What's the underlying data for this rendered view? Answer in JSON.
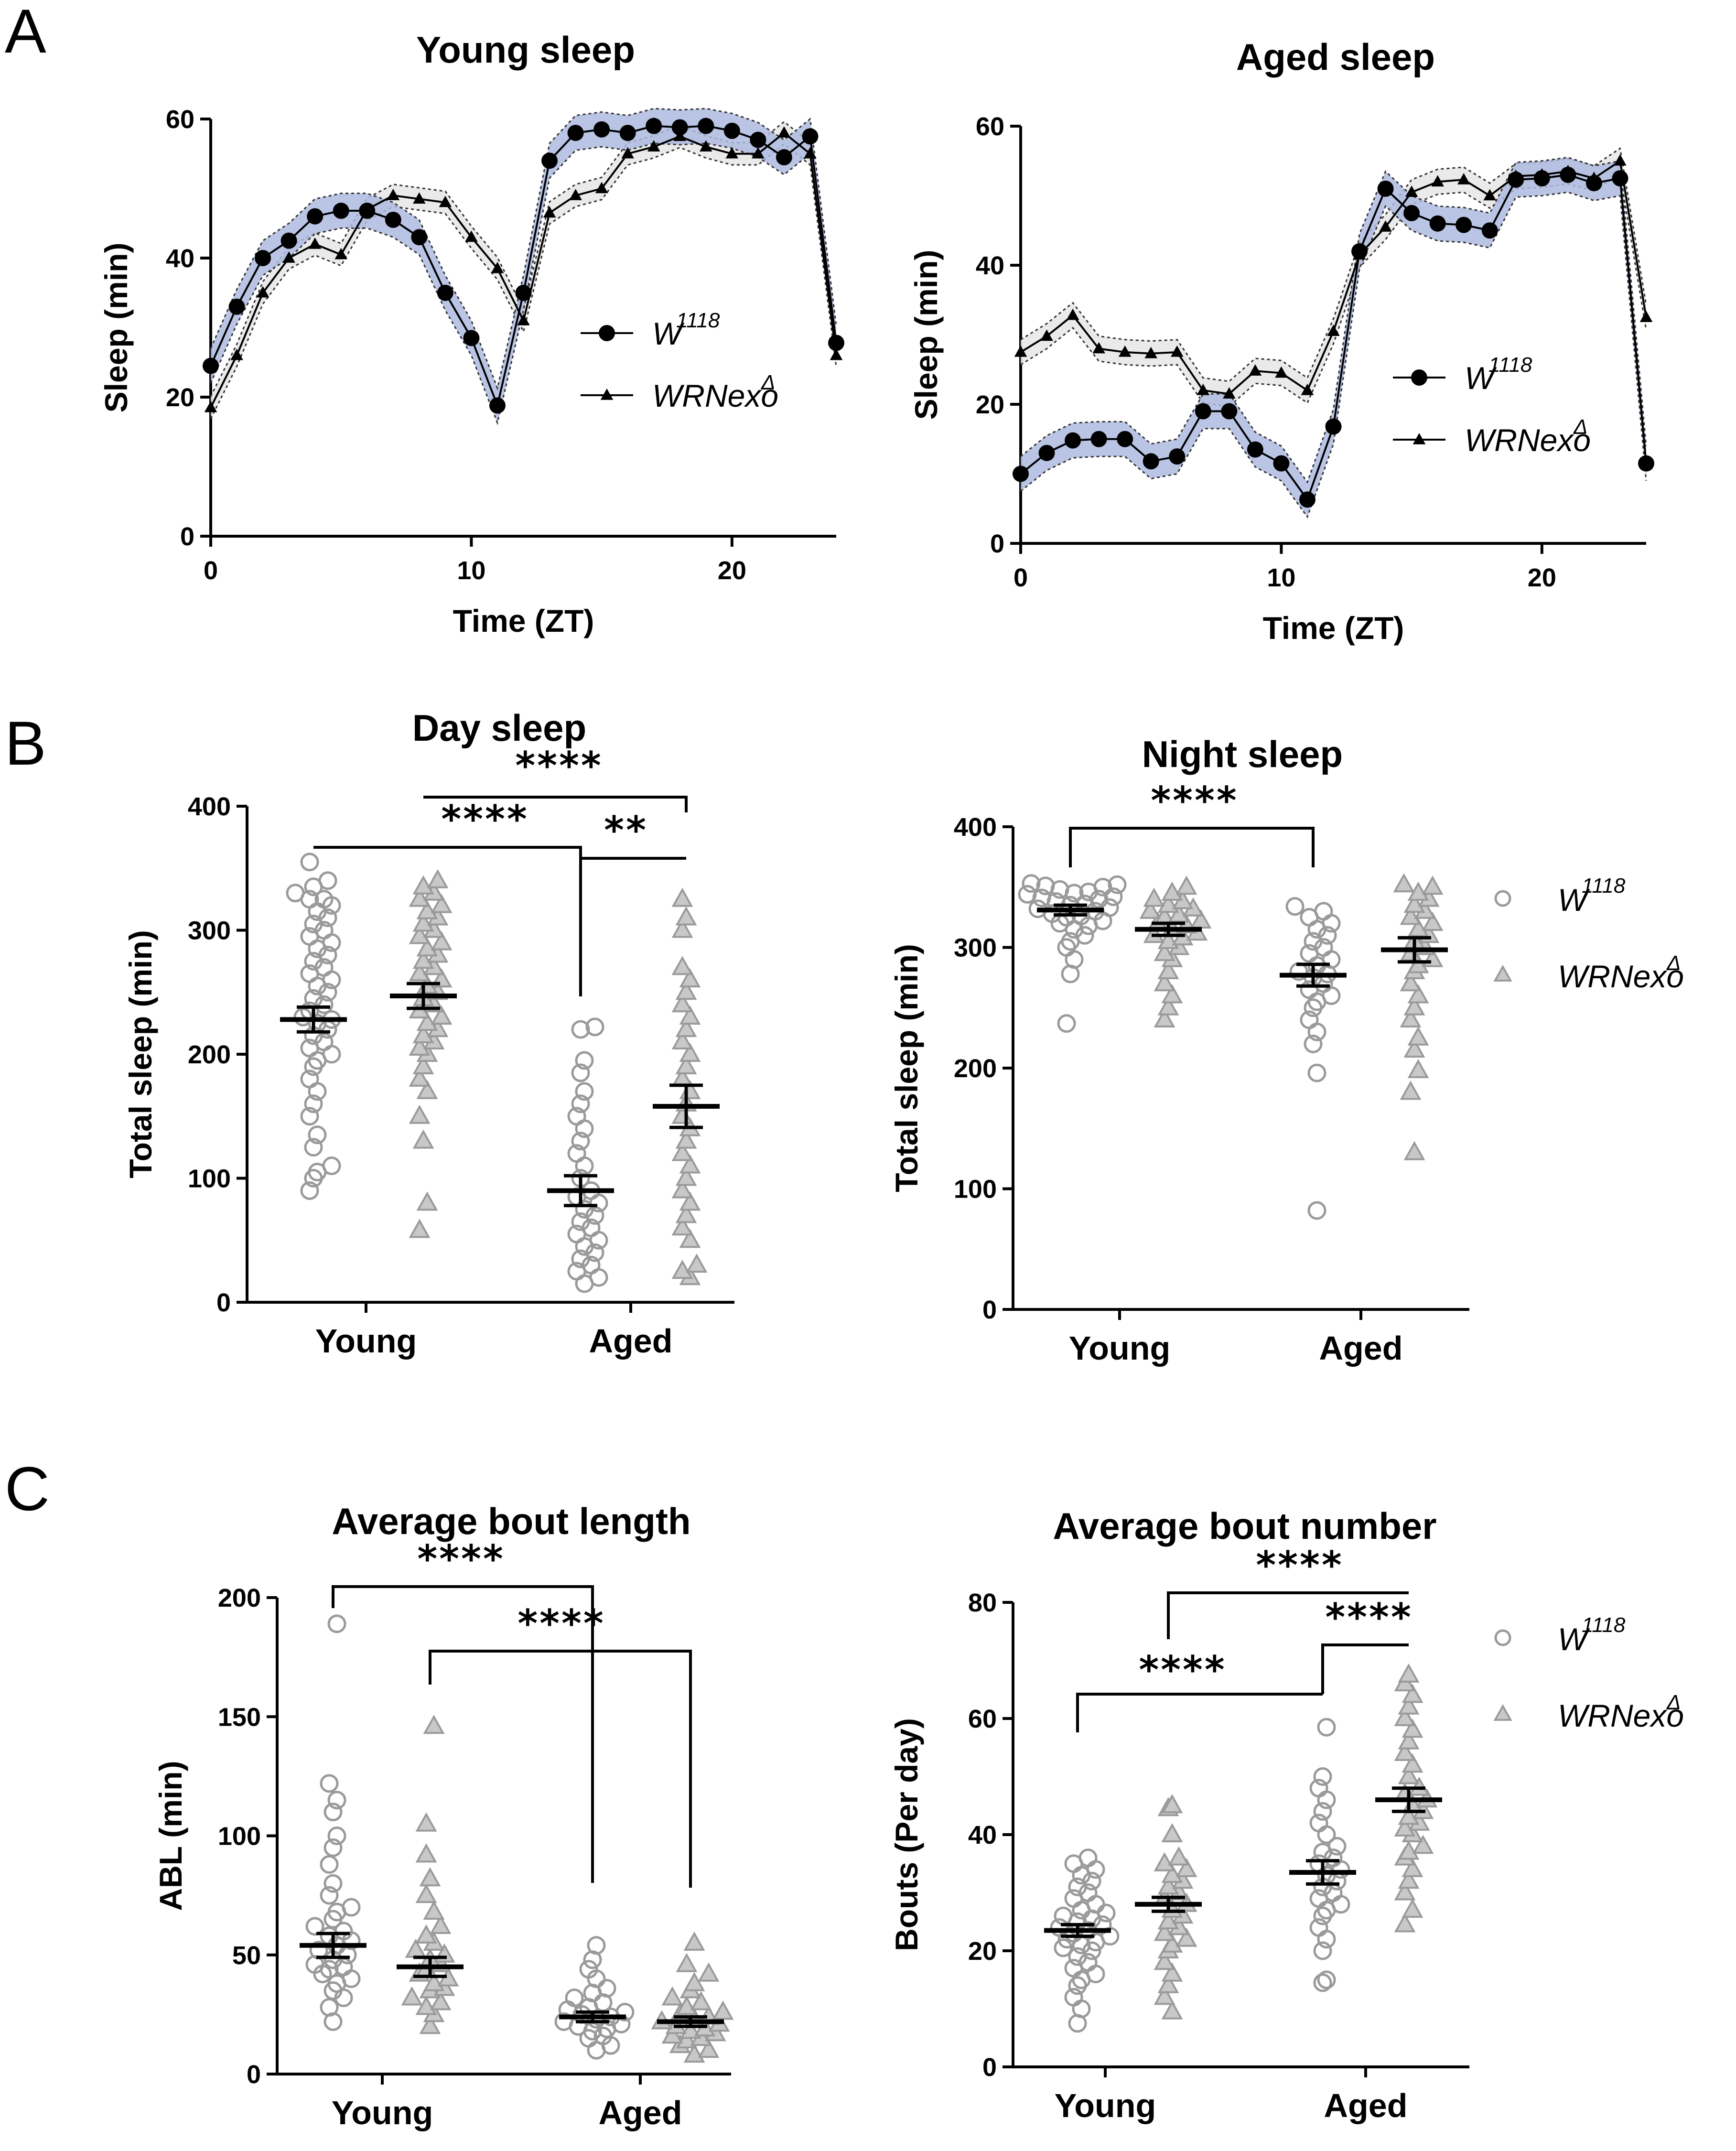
{
  "panels": [
    {
      "id": "A",
      "label": "A"
    },
    {
      "id": "B",
      "label": "B"
    },
    {
      "id": "C",
      "label": "C"
    }
  ],
  "legend": {
    "w1118": {
      "base": "W",
      "sup": "1118"
    },
    "wrn": {
      "base": "WRNexo",
      "sup": "Δ"
    }
  },
  "colors": {
    "band_w1118": "#aebbe0",
    "band_wrn": "#e6e6e6",
    "marker_gray": "#9a9a9a",
    "marker_fill_tri": "#c8c8c8"
  },
  "chart_data": [
    {
      "id": "young_sleep",
      "type": "line",
      "title": "Young sleep",
      "xlabel": "Time (ZT)",
      "ylabel": "Sleep (min)",
      "xlim": [
        0,
        24
      ],
      "ylim": [
        0,
        60
      ],
      "xticks": [
        0,
        10,
        20
      ],
      "yticks": [
        0,
        20,
        40,
        60
      ],
      "x": [
        0,
        1,
        2,
        3,
        4,
        5,
        6,
        7,
        8,
        9,
        10,
        11,
        12,
        13,
        14,
        15,
        16,
        17,
        18,
        19,
        20,
        21,
        22,
        23,
        24
      ],
      "series": [
        {
          "name": "W1118",
          "marker": "circle",
          "sem": 2.5,
          "values": [
            24.5,
            33,
            40,
            42.5,
            46,
            46.8,
            46.8,
            45.5,
            43,
            35,
            28.5,
            18.8,
            35,
            54,
            58,
            58.5,
            58,
            59,
            58.8,
            59,
            58.3,
            57,
            54.5,
            57.5,
            27.8
          ]
        },
        {
          "name": "WRNexoΔ",
          "marker": "triangle",
          "sem": 1.6,
          "values": [
            18.5,
            26,
            35,
            40,
            42,
            40.5,
            47,
            49,
            48.5,
            48,
            43,
            38.5,
            31,
            46.5,
            49,
            50,
            55,
            56,
            57.5,
            56,
            55,
            55,
            58,
            55,
            26
          ]
        }
      ]
    },
    {
      "id": "aged_sleep",
      "type": "line",
      "title": "Aged sleep",
      "xlabel": "Time (ZT)",
      "ylabel": "Sleep (min)",
      "xlim": [
        0,
        24
      ],
      "ylim": [
        0,
        60
      ],
      "xticks": [
        0,
        10,
        20
      ],
      "yticks": [
        0,
        20,
        40,
        60
      ],
      "x": [
        0,
        1,
        2,
        3,
        4,
        5,
        6,
        7,
        8,
        9,
        10,
        11,
        12,
        13,
        14,
        15,
        16,
        17,
        18,
        19,
        20,
        21,
        22,
        23,
        24
      ],
      "series": [
        {
          "name": "W1118",
          "marker": "circle",
          "sem": 2.5,
          "values": [
            10,
            13,
            14.8,
            15,
            15,
            11.8,
            12.5,
            19,
            19,
            13.5,
            11.5,
            6.3,
            16.8,
            42,
            51,
            47.5,
            46,
            45.8,
            45,
            52.3,
            52.5,
            53,
            51.8,
            52.5,
            11.5
          ]
        },
        {
          "name": "WRNexoΔ",
          "marker": "triangle",
          "sem": 1.8,
          "values": [
            27.5,
            29.8,
            32.8,
            28,
            27.5,
            27.3,
            27.5,
            22,
            21.5,
            24.8,
            24.5,
            22,
            30.5,
            41.5,
            45.5,
            50.5,
            52,
            52.3,
            50,
            52.8,
            53,
            53.5,
            52.5,
            55,
            32.5
          ]
        }
      ]
    },
    {
      "id": "day_sleep",
      "type": "scatter",
      "title": "Day sleep",
      "xlabel": "",
      "ylabel": "Total sleep (min)",
      "ylim": [
        0,
        400
      ],
      "yticks": [
        0,
        100,
        200,
        300,
        400
      ],
      "categories": [
        "Young",
        "Aged"
      ],
      "groups": [
        {
          "name": "W1118 Young",
          "marker": "circle",
          "mean": 228,
          "sem": 10,
          "values": [
            90,
            100,
            105,
            110,
            125,
            135,
            150,
            160,
            170,
            180,
            190,
            195,
            200,
            205,
            210,
            215,
            220,
            225,
            228,
            230,
            235,
            240,
            245,
            250,
            255,
            260,
            265,
            270,
            275,
            280,
            285,
            290,
            295,
            300,
            305,
            310,
            315,
            320,
            325,
            325,
            330,
            335,
            340,
            355
          ]
        },
        {
          "name": "WRNexoΔ Young",
          "marker": "triangle",
          "mean": 247,
          "sem": 10,
          "values": [
            58,
            80,
            130,
            150,
            170,
            180,
            190,
            200,
            205,
            210,
            215,
            220,
            225,
            230,
            235,
            240,
            245,
            250,
            255,
            260,
            265,
            270,
            275,
            280,
            285,
            290,
            295,
            300,
            305,
            310,
            315,
            320,
            325,
            330,
            335,
            340
          ]
        },
        {
          "name": "W1118 Aged",
          "marker": "circle",
          "mean": 90,
          "sem": 12,
          "values": [
            15,
            20,
            25,
            30,
            35,
            40,
            45,
            50,
            55,
            60,
            65,
            70,
            75,
            80,
            85,
            90,
            100,
            110,
            120,
            130,
            140,
            150,
            160,
            170,
            185,
            195,
            220,
            222
          ]
        },
        {
          "name": "WRNexoΔ Aged",
          "marker": "triangle",
          "mean": 158,
          "sem": 17,
          "values": [
            20,
            25,
            30,
            50,
            60,
            70,
            80,
            90,
            100,
            110,
            120,
            130,
            140,
            150,
            160,
            170,
            180,
            190,
            200,
            210,
            220,
            230,
            240,
            250,
            260,
            270,
            300,
            310,
            325
          ]
        }
      ],
      "sig": [
        {
          "from": 0,
          "to": 2,
          "label": "****"
        },
        {
          "from": 1,
          "to": 3,
          "label": "****"
        },
        {
          "from": 2,
          "to": 3,
          "label": "**"
        }
      ]
    },
    {
      "id": "night_sleep",
      "type": "scatter",
      "title": "Night sleep",
      "xlabel": "",
      "ylabel": "Total sleep (min)",
      "ylim": [
        0,
        400
      ],
      "yticks": [
        0,
        100,
        200,
        300,
        400
      ],
      "categories": [
        "Young",
        "Aged"
      ],
      "groups": [
        {
          "name": "W1118 Young",
          "marker": "circle",
          "mean": 331,
          "sem": 4,
          "values": [
            237,
            278,
            290,
            300,
            305,
            310,
            315,
            318,
            320,
            322,
            325,
            326,
            328,
            330,
            332,
            333,
            335,
            336,
            338,
            340,
            341,
            342,
            344,
            345,
            346,
            348,
            350,
            351,
            352,
            353
          ]
        },
        {
          "name": "WRNexoΔ Young",
          "marker": "triangle",
          "mean": 315,
          "sem": 5,
          "values": [
            240,
            250,
            260,
            270,
            280,
            290,
            295,
            300,
            305,
            308,
            310,
            312,
            315,
            318,
            320,
            322,
            325,
            327,
            330,
            332,
            335,
            338,
            340,
            345,
            350
          ]
        },
        {
          "name": "W1118 Aged",
          "marker": "circle",
          "mean": 277,
          "sem": 9,
          "values": [
            82,
            196,
            220,
            230,
            240,
            250,
            255,
            260,
            265,
            270,
            275,
            278,
            280,
            285,
            290,
            295,
            300,
            305,
            310,
            315,
            320,
            325,
            330,
            334
          ]
        },
        {
          "name": "WRNexoΔ Aged",
          "marker": "triangle",
          "mean": 298,
          "sem": 10,
          "values": [
            130,
            180,
            198,
            215,
            225,
            240,
            250,
            260,
            270,
            280,
            285,
            290,
            295,
            300,
            305,
            310,
            315,
            320,
            325,
            330,
            335,
            340,
            345,
            350,
            352
          ]
        }
      ],
      "sig": [
        {
          "from": 0,
          "to": 2,
          "label": "****"
        }
      ]
    },
    {
      "id": "avg_bout_length",
      "type": "scatter",
      "title": "Average bout length",
      "xlabel": "",
      "ylabel": "ABL (min)",
      "ylim": [
        0,
        200
      ],
      "yticks": [
        0,
        50,
        100,
        150,
        200
      ],
      "categories": [
        "Young",
        "Aged"
      ],
      "groups": [
        {
          "name": "W1118 Young",
          "marker": "circle",
          "mean": 54,
          "sem": 5,
          "values": [
            22,
            28,
            32,
            35,
            38,
            40,
            42,
            44,
            45,
            46,
            48,
            50,
            52,
            54,
            56,
            58,
            60,
            62,
            65,
            68,
            70,
            75,
            80,
            88,
            95,
            100,
            110,
            115,
            122,
            189
          ]
        },
        {
          "name": "WRNexoΔ Young",
          "marker": "triangle",
          "mean": 45,
          "sem": 4,
          "values": [
            20,
            25,
            28,
            30,
            32,
            35,
            36,
            38,
            40,
            42,
            44,
            46,
            48,
            50,
            52,
            55,
            58,
            62,
            68,
            75,
            82,
            92,
            105,
            146
          ]
        },
        {
          "name": "W1118 Aged",
          "marker": "circle",
          "mean": 24,
          "sem": 2,
          "values": [
            10,
            12,
            15,
            16,
            18,
            19,
            20,
            21,
            22,
            23,
            24,
            25,
            26,
            27,
            28,
            30,
            32,
            34,
            36,
            40,
            44,
            48,
            54
          ]
        },
        {
          "name": "WRNexoΔ Aged",
          "marker": "triangle",
          "mean": 22,
          "sem": 2,
          "values": [
            8,
            10,
            12,
            14,
            15,
            16,
            17,
            18,
            19,
            20,
            21,
            22,
            23,
            24,
            25,
            26,
            28,
            30,
            32,
            35,
            38,
            42,
            46,
            55
          ]
        }
      ],
      "sig": [
        {
          "from": 0,
          "to": 2,
          "label": "****"
        },
        {
          "from": 1,
          "to": 3,
          "label": "****"
        }
      ]
    },
    {
      "id": "avg_bout_number",
      "type": "scatter",
      "title": "Average bout number",
      "xlabel": "",
      "ylabel": "Bouts (Per day)",
      "ylim": [
        0,
        80
      ],
      "yticks": [
        0,
        20,
        40,
        60,
        80
      ],
      "categories": [
        "Young",
        "Aged"
      ],
      "groups": [
        {
          "name": "W1118 Young",
          "marker": "circle",
          "mean": 23.5,
          "sem": 1,
          "values": [
            7.5,
            10,
            12,
            14,
            15,
            16,
            17,
            18,
            19,
            20,
            20.5,
            21,
            21.5,
            22,
            22.5,
            23,
            23.5,
            24,
            24.5,
            25,
            25.5,
            26,
            26.5,
            27,
            28,
            29,
            30,
            31,
            32,
            33,
            34,
            35,
            36
          ]
        },
        {
          "name": "WRNexoΔ Young",
          "marker": "triangle",
          "mean": 28,
          "sem": 1.2,
          "values": [
            9.5,
            12,
            14,
            16,
            18,
            20,
            21,
            22,
            23,
            24,
            25,
            26,
            27,
            28,
            29,
            30,
            31,
            32,
            33,
            34,
            35,
            36,
            40,
            44.5,
            45
          ]
        },
        {
          "name": "W1118 Aged",
          "marker": "circle",
          "mean": 33.5,
          "sem": 2,
          "values": [
            14.5,
            15,
            20,
            22,
            24,
            26,
            27,
            28,
            29,
            30,
            31,
            32,
            33,
            34,
            35,
            36,
            37,
            38,
            40,
            42,
            44,
            46,
            48,
            50,
            58.5
          ]
        },
        {
          "name": "WRNexoΔ Aged",
          "marker": "triangle",
          "mean": 46,
          "sem": 2,
          "values": [
            24.5,
            27,
            30,
            32,
            34,
            36,
            37,
            38,
            40,
            41,
            42,
            43,
            44,
            45,
            46,
            47,
            48,
            50,
            52,
            54,
            56,
            58,
            60,
            62,
            64,
            66,
            67.5
          ]
        }
      ],
      "sig": [
        {
          "from": 0,
          "to": 2,
          "label": "****"
        },
        {
          "from": 1,
          "to": 3,
          "label": "****"
        },
        {
          "from": 2,
          "to": 3,
          "label": "****"
        }
      ]
    }
  ]
}
